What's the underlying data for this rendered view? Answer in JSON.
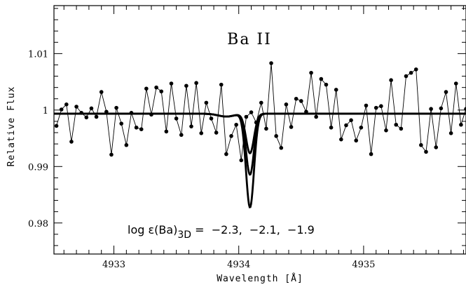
{
  "chart_data": {
    "type": "line",
    "title": "",
    "xlabel": "Wavelength [Å]",
    "ylabel": "Relative Flux",
    "xlim": [
      4932.52,
      4935.82
    ],
    "ylim": [
      0.9745,
      1.0185
    ],
    "x_ticks": [
      4933,
      4934,
      4935
    ],
    "y_ticks": [
      0.98,
      0.99,
      1,
      1.01
    ],
    "y_tick_labels": [
      "0.98",
      "0.99",
      "1",
      "1.01"
    ],
    "grid": false,
    "species_label": "Ba  II",
    "annotation": {
      "prefix": "log ε(Ba)",
      "subscript": "3D",
      "values": " =  −2.3,  −2.1,  −1.9"
    },
    "observed": {
      "name": "",
      "marker": "dot",
      "points": [
        [
          4932.54,
          0.9972
        ],
        [
          4932.58,
          1.0001
        ],
        [
          4932.62,
          1.001
        ],
        [
          4932.66,
          0.9944
        ],
        [
          4932.7,
          1.0006
        ],
        [
          4932.74,
          0.9995
        ],
        [
          4932.78,
          0.9987
        ],
        [
          4932.82,
          1.0003
        ],
        [
          4932.86,
          0.9988
        ],
        [
          4932.9,
          1.0032
        ],
        [
          4932.94,
          0.9997
        ],
        [
          4932.98,
          0.9921
        ],
        [
          4933.02,
          1.0004
        ],
        [
          4933.06,
          0.9976
        ],
        [
          4933.1,
          0.9938
        ],
        [
          4933.14,
          0.9995
        ],
        [
          4933.18,
          0.9969
        ],
        [
          4933.22,
          0.9966
        ],
        [
          4933.26,
          1.0038
        ],
        [
          4933.3,
          0.9992
        ],
        [
          4933.34,
          1.004
        ],
        [
          4933.38,
          1.0033
        ],
        [
          4933.42,
          0.9962
        ],
        [
          4933.46,
          1.0047
        ],
        [
          4933.5,
          0.9985
        ],
        [
          4933.54,
          0.9956
        ],
        [
          4933.58,
          1.0043
        ],
        [
          4933.62,
          0.9971
        ],
        [
          4933.66,
          1.0048
        ],
        [
          4933.7,
          0.9959
        ],
        [
          4933.74,
          1.0013
        ],
        [
          4933.78,
          0.9985
        ],
        [
          4933.82,
          0.996
        ],
        [
          4933.86,
          1.0045
        ],
        [
          4933.9,
          0.9922
        ],
        [
          4933.94,
          0.9954
        ],
        [
          4933.98,
          0.9974
        ],
        [
          4934.02,
          0.9911
        ],
        [
          4934.06,
          0.9988
        ],
        [
          4934.1,
          0.9996
        ],
        [
          4934.14,
          0.9978
        ],
        [
          4934.18,
          1.0013
        ],
        [
          4934.22,
          0.9967
        ],
        [
          4934.26,
          1.0083
        ],
        [
          4934.3,
          0.9954
        ],
        [
          4934.34,
          0.9933
        ],
        [
          4934.38,
          1.001
        ],
        [
          4934.42,
          0.997
        ],
        [
          4934.46,
          1.002
        ],
        [
          4934.5,
          1.0016
        ],
        [
          4934.54,
          0.9997
        ],
        [
          4934.58,
          1.0066
        ],
        [
          4934.62,
          0.9988
        ],
        [
          4934.66,
          1.0055
        ],
        [
          4934.7,
          1.0045
        ],
        [
          4934.74,
          0.9969
        ],
        [
          4934.78,
          1.0036
        ],
        [
          4934.82,
          0.9948
        ],
        [
          4934.86,
          0.9973
        ],
        [
          4934.9,
          0.9982
        ],
        [
          4934.94,
          0.9946
        ],
        [
          4934.98,
          0.9969
        ],
        [
          4935.02,
          1.0008
        ],
        [
          4935.06,
          0.9922
        ],
        [
          4935.1,
          1.0004
        ],
        [
          4935.14,
          1.0007
        ],
        [
          4935.18,
          0.9964
        ],
        [
          4935.22,
          1.0053
        ],
        [
          4935.26,
          0.9974
        ],
        [
          4935.3,
          0.9967
        ],
        [
          4935.34,
          1.006
        ],
        [
          4935.38,
          1.0066
        ],
        [
          4935.42,
          1.0072
        ],
        [
          4935.46,
          0.9938
        ],
        [
          4935.5,
          0.9926
        ],
        [
          4935.54,
          1.0002
        ],
        [
          4935.58,
          0.9934
        ],
        [
          4935.62,
          1.0003
        ],
        [
          4935.66,
          1.0032
        ],
        [
          4935.7,
          0.9959
        ],
        [
          4935.74,
          1.0047
        ],
        [
          4935.78,
          0.9974
        ],
        [
          4935.82,
          1.0002
        ]
      ]
    },
    "synthetic": {
      "line_center": 4934.09,
      "profiles": [
        {
          "log_eps": "-2.3",
          "depth": 0.007
        },
        {
          "log_eps": "-2.1",
          "depth": 0.0108
        },
        {
          "log_eps": "-1.9",
          "depth": 0.0166
        }
      ]
    }
  }
}
